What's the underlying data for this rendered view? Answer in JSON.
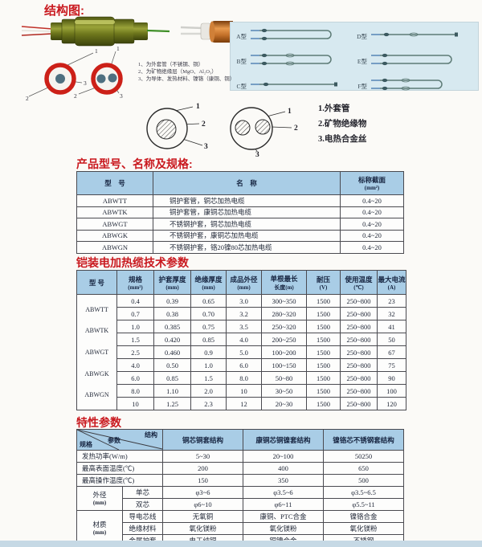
{
  "titles": {
    "structure": "结构图:",
    "product": "产品型号、名称及规格:",
    "tech": "铠装电加热缆技术参数",
    "character": "特性参数"
  },
  "structure": {
    "type_panel": {
      "items": [
        {
          "label": "A型",
          "shape": "loop"
        },
        {
          "label": "D型",
          "shape": "straight-mid"
        },
        {
          "label": "B型",
          "shape": "loop-mid"
        },
        {
          "label": "E型",
          "shape": "loop"
        },
        {
          "label": "C型",
          "shape": "straight"
        },
        {
          "label": "F型",
          "shape": "loop-short"
        }
      ]
    },
    "photo_legend": [
      "1、为外套管（不锈钢、铜）",
      "2、为矿物绝缘层（MgO、Al₂O₃）",
      "3、为导体、发热材料、镍铬（康铜、铜）"
    ],
    "section_legend": [
      "1.外套管",
      "2.矿物绝缘物",
      "3.电热合金丝"
    ],
    "callout_numbers": [
      "1",
      "2",
      "3"
    ]
  },
  "product_table": {
    "headers": [
      {
        "l": "型　号",
        "u": ""
      },
      {
        "l": "名　称",
        "u": ""
      },
      {
        "l": "标称截面",
        "u": "(mm²)"
      }
    ],
    "rows": [
      {
        "model": "ABWTT",
        "name": "铜护套管，铜芯加热电缆",
        "section": "0.4~20"
      },
      {
        "model": "ABWTK",
        "name": "铜护套管，康铜芯加热电缆",
        "section": "0.4~20"
      },
      {
        "model": "ABWGT",
        "name": "不锈钢护套，铜芯加热电缆",
        "section": "0.4~20"
      },
      {
        "model": "ABWGK",
        "name": "不锈钢护套，康铜芯加热电缆",
        "section": "0.4~20"
      },
      {
        "model": "ABWGN",
        "name": "不锈钢护套，铬20镍80芯加热电缆",
        "section": "0.4~20"
      }
    ]
  },
  "tech_table": {
    "headers": [
      {
        "l": "型 号",
        "u": ""
      },
      {
        "l": "规格",
        "u": "(mm²)"
      },
      {
        "l": "护套厚度",
        "u": "(mm)"
      },
      {
        "l": "绝缘厚度",
        "u": "(mm)"
      },
      {
        "l": "成品外径",
        "u": "(mm)"
      },
      {
        "l": "单根最长",
        "u": "长度(m)"
      },
      {
        "l": "耐压",
        "u": "(V)"
      },
      {
        "l": "使用温度",
        "u": "(℃)"
      },
      {
        "l": "最大电流",
        "u": "(A)"
      }
    ],
    "models": [
      "ABWTT",
      "ABWTK",
      "ABWGT",
      "ABWGK",
      "ABWGN"
    ],
    "rows": [
      [
        "0.4",
        "0.39",
        "0.65",
        "3.0",
        "300~350",
        "1500",
        "250~800",
        "23"
      ],
      [
        "0.7",
        "0.38",
        "0.70",
        "3.2",
        "280~320",
        "1500",
        "250~800",
        "32"
      ],
      [
        "1.0",
        "0.385",
        "0.75",
        "3.5",
        "250~320",
        "1500",
        "250~800",
        "41"
      ],
      [
        "1.5",
        "0.420",
        "0.85",
        "4.0",
        "200~250",
        "1500",
        "250~800",
        "50"
      ],
      [
        "2.5",
        "0.460",
        "0.9",
        "5.0",
        "100~200",
        "1500",
        "250~800",
        "67"
      ],
      [
        "4.0",
        "0.50",
        "1.0",
        "6.0",
        "100~150",
        "1500",
        "250~800",
        "75"
      ],
      [
        "6.0",
        "0.85",
        "1.5",
        "8.0",
        "50~80",
        "1500",
        "250~800",
        "90"
      ],
      [
        "8.0",
        "1.10",
        "2.0",
        "10",
        "30~50",
        "1500",
        "250~800",
        "100"
      ],
      [
        "10",
        "1.25",
        "2.3",
        "12",
        "20~30",
        "1500",
        "250~800",
        "120"
      ]
    ]
  },
  "character_table": {
    "corner": {
      "top": "结构",
      "mid": "参数",
      "bot": "规格"
    },
    "columns": [
      "铜芯铜套结构",
      "康铜芯铜镍套结构",
      "镍铬芯不锈钢套结构"
    ],
    "simple_rows": [
      {
        "label": "发热功率(W/m)",
        "values": [
          "5~30",
          "20~100",
          "50250"
        ]
      },
      {
        "label": "最高表面温度(℃)",
        "values": [
          "200",
          "400",
          "650"
        ]
      },
      {
        "label": "最高操作温度(℃)",
        "values": [
          "150",
          "350",
          "500"
        ]
      }
    ],
    "groups": [
      {
        "name": "外径",
        "unit": "(mm)",
        "rows": [
          {
            "sub": "单芯",
            "values": [
              "φ3~6",
              "φ3.5~6",
              "φ3.5~6.5"
            ]
          },
          {
            "sub": "双芯",
            "values": [
              "φ6~10",
              "φ6~11",
              "φ5.5~11"
            ]
          }
        ]
      },
      {
        "name": "材质",
        "unit": "(mm)",
        "rows": [
          {
            "sub": "导电芯线",
            "values": [
              "无氧铜",
              "康铜、PTC合金",
              "镍铬合金"
            ]
          },
          {
            "sub": "绝缘材料",
            "values": [
              "氧化镁粉",
              "氧化镁粉",
              "氧化镁粉"
            ]
          },
          {
            "sub": "金属护套",
            "values": [
              "电工纯铜",
              "铜镍合金",
              "不锈钢"
            ]
          }
        ]
      }
    ]
  }
}
